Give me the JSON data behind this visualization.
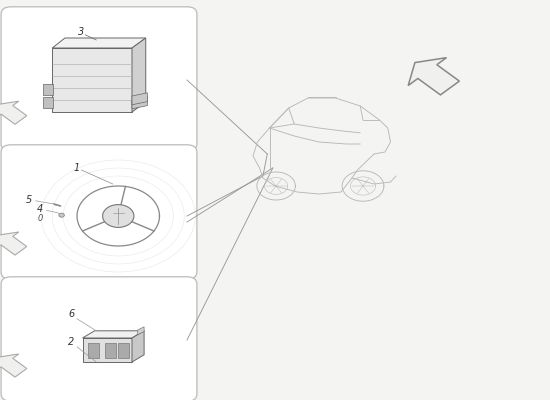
{
  "bg_color": "#f4f4f2",
  "box_color": "#ffffff",
  "box_edge_color": "#bbbbbb",
  "line_color": "#999999",
  "part_line_color": "#666666",
  "boxes": [
    {
      "xn": 0.02,
      "yn": 0.64,
      "wn": 0.32,
      "hn": 0.325
    },
    {
      "xn": 0.02,
      "yn": 0.32,
      "wn": 0.32,
      "hn": 0.3
    },
    {
      "xn": 0.02,
      "yn": 0.015,
      "wn": 0.32,
      "hn": 0.275
    }
  ],
  "callout_lines": [
    [
      0.34,
      0.79,
      0.495,
      0.605
    ],
    [
      0.34,
      0.455,
      0.47,
      0.565
    ],
    [
      0.34,
      0.44,
      0.43,
      0.53
    ],
    [
      0.34,
      0.14,
      0.43,
      0.52
    ]
  ],
  "car_color": "#cccccc",
  "arrow_edge": "#aaaaaa",
  "arrow_fill": "#f0f0ee",
  "big_arrow_edge": "#888888",
  "big_arrow_fill": "#f0f0ee"
}
